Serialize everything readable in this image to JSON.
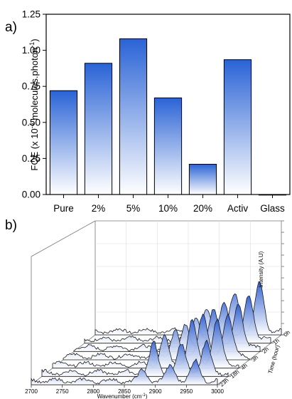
{
  "chart_data": [
    {
      "panel_label": "a)",
      "type": "bar",
      "ylabel_main": "FQE (x 10",
      "ylabel_sup": "-4",
      "ylabel_rest": " molecules.photon",
      "ylabel_sup2": "-1",
      "ylabel_end": ")",
      "ylim": [
        0,
        1.25
      ],
      "yticks": [
        "0.00",
        "0.25",
        "0.50",
        "0.75",
        "1.00",
        "1.25"
      ],
      "categories": [
        "Pure",
        "2%",
        "5%",
        "10%",
        "20%",
        "Activ",
        "Glass"
      ],
      "values": [
        0.72,
        0.91,
        1.08,
        0.67,
        0.21,
        0.935,
        0.0
      ],
      "fill_gradient": [
        "#2a63d6",
        "#ffffff"
      ],
      "grid": false
    },
    {
      "panel_label": "b)",
      "type": "area",
      "xlabel": "Wavenumber (cm",
      "xlabel_sup": "-1",
      "xlabel_end": ")",
      "zlabel": "Intensity (A.U)",
      "ylabel": "Time (hour)",
      "xticks": [
        "2700",
        "2750",
        "2800",
        "2850",
        "2900",
        "2950",
        "3000"
      ],
      "xlim": [
        2700,
        3000
      ],
      "time_labels": [
        "0h",
        "1h",
        "2h",
        "3h",
        "4h",
        "18h",
        "23h"
      ],
      "peak_wavenumbers": [
        2880,
        2925,
        2965
      ],
      "series": [
        {
          "time": "0h",
          "peak_heights": [
            0.45,
            0.78,
            1.0
          ]
        },
        {
          "time": "1h",
          "peak_heights": [
            0.48,
            0.8,
            0.92
          ]
        },
        {
          "time": "2h",
          "peak_heights": [
            0.52,
            0.83,
            0.95
          ]
        },
        {
          "time": "3h",
          "peak_heights": [
            0.55,
            0.86,
            0.88
          ]
        },
        {
          "time": "4h",
          "peak_heights": [
            0.58,
            0.88,
            0.9
          ]
        },
        {
          "time": "18h",
          "peak_heights": [
            0.62,
            0.55,
            0.6
          ]
        },
        {
          "time": "23h",
          "peak_heights": [
            0.22,
            0.3,
            0.4
          ]
        }
      ]
    }
  ]
}
